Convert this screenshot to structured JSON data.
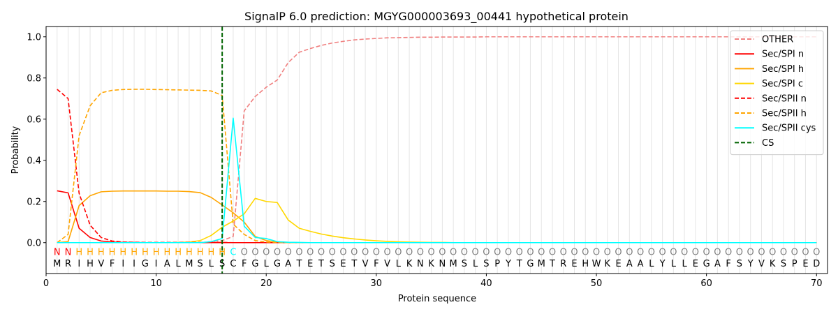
{
  "chart_data": {
    "type": "line",
    "title": "SignalP 6.0 prediction: MGYG000003693_00441 hypothetical protein",
    "xlabel": "Protein sequence",
    "ylabel": "Probability",
    "xlim": [
      0,
      71
    ],
    "ylim": [
      -0.15,
      1.05
    ],
    "x_ticks": [
      "0",
      "10",
      "20",
      "30",
      "40",
      "50",
      "60",
      "70"
    ],
    "y_ticks": [
      "0.0",
      "0.2",
      "0.4",
      "0.6",
      "0.8",
      "1.0"
    ],
    "grid": "vertical lines at each residue",
    "legend_position": "top-right",
    "sequence": [
      "M",
      "R",
      "I",
      "H",
      "V",
      "F",
      "I",
      "I",
      "G",
      "I",
      "A",
      "L",
      "M",
      "S",
      "L",
      "S",
      "C",
      "F",
      "G",
      "L",
      "G",
      "A",
      "T",
      "E",
      "T",
      "S",
      "E",
      "T",
      "V",
      "F",
      "V",
      "L",
      "K",
      "N",
      "K",
      "N",
      "M",
      "S",
      "L",
      "S",
      "P",
      "Y",
      "T",
      "G",
      "M",
      "T",
      "R",
      "E",
      "H",
      "W",
      "K",
      "E",
      "A",
      "A",
      "L",
      "Y",
      "L",
      "L",
      "E",
      "G",
      "A",
      "F",
      "S",
      "Y",
      "V",
      "K",
      "S",
      "P",
      "E",
      "D"
    ],
    "annotation": [
      "N",
      "N",
      "H",
      "H",
      "H",
      "H",
      "H",
      "H",
      "H",
      "H",
      "H",
      "H",
      "H",
      "H",
      "H",
      "H",
      "C",
      "O",
      "O",
      "O",
      "O",
      "O",
      "O",
      "O",
      "O",
      "O",
      "O",
      "O",
      "O",
      "O",
      "O",
      "O",
      "O",
      "O",
      "O",
      "O",
      "O",
      "O",
      "O",
      "O",
      "O",
      "O",
      "O",
      "O",
      "O",
      "O",
      "O",
      "O",
      "O",
      "O",
      "O",
      "O",
      "O",
      "O",
      "O",
      "O",
      "O",
      "O",
      "O",
      "O",
      "O",
      "O",
      "O",
      "O",
      "O",
      "O",
      "O",
      "O",
      "O",
      "O"
    ],
    "annotation_colors": {
      "N": "#ff0000",
      "H": "#ffa500",
      "C": "#00ffff",
      "O": "#808080"
    },
    "cleavage_site": 16,
    "series": [
      {
        "name": "OTHER",
        "color": "#f08080",
        "dash": true,
        "values": [
          0.0,
          0.0,
          0.0,
          0.0,
          0.0,
          0.0,
          0.0,
          0.0,
          0.0,
          0.0,
          0.0,
          0.0,
          0.0,
          0.0,
          0.005,
          0.01,
          0.03,
          0.64,
          0.71,
          0.755,
          0.79,
          0.875,
          0.925,
          0.943,
          0.958,
          0.97,
          0.978,
          0.985,
          0.989,
          0.992,
          0.995,
          0.996,
          0.997,
          0.998,
          0.998,
          0.999,
          0.999,
          0.999,
          0.999,
          1.0,
          1.0,
          1.0,
          1.0,
          1.0,
          1.0,
          1.0,
          1.0,
          1.0,
          1.0,
          1.0,
          1.0,
          1.0,
          1.0,
          1.0,
          1.0,
          1.0,
          1.0,
          1.0,
          1.0,
          1.0,
          1.0,
          1.0,
          1.0,
          1.0,
          1.0,
          1.0,
          1.0,
          1.0,
          1.0,
          1.0
        ]
      },
      {
        "name": "Sec/SPI n",
        "color": "#ff0000",
        "dash": false,
        "values": [
          0.252,
          0.242,
          0.07,
          0.025,
          0.008,
          0.003,
          0.001,
          0.001,
          0.0,
          0.0,
          0.0,
          0.0,
          0.0,
          0.0,
          0.0,
          0.0,
          0.0,
          0.0,
          0.0,
          0.0,
          0.0,
          0.0,
          0.0,
          0.0,
          0.0,
          0.0,
          0.0,
          0.0,
          0.0,
          0.0,
          0.0,
          0.0,
          0.0,
          0.0,
          0.0,
          0.0,
          0.0,
          0.0,
          0.0,
          0.0,
          0.0,
          0.0,
          0.0,
          0.0,
          0.0,
          0.0,
          0.0,
          0.0,
          0.0,
          0.0,
          0.0,
          0.0,
          0.0,
          0.0,
          0.0,
          0.0,
          0.0,
          0.0,
          0.0,
          0.0,
          0.0,
          0.0,
          0.0,
          0.0,
          0.0,
          0.0,
          0.0,
          0.0,
          0.0,
          0.0
        ]
      },
      {
        "name": "Sec/SPI h",
        "color": "#ffa500",
        "dash": false,
        "values": [
          0.0,
          0.005,
          0.18,
          0.228,
          0.247,
          0.25,
          0.251,
          0.251,
          0.251,
          0.251,
          0.25,
          0.25,
          0.248,
          0.243,
          0.22,
          0.183,
          0.145,
          0.1,
          0.03,
          0.01,
          0.003,
          0.0,
          0.0,
          0.0,
          0.0,
          0.0,
          0.0,
          0.0,
          0.0,
          0.0,
          0.0,
          0.0,
          0.0,
          0.0,
          0.0,
          0.0,
          0.0,
          0.0,
          0.0,
          0.0,
          0.0,
          0.0,
          0.0,
          0.0,
          0.0,
          0.0,
          0.0,
          0.0,
          0.0,
          0.0,
          0.0,
          0.0,
          0.0,
          0.0,
          0.0,
          0.0,
          0.0,
          0.0,
          0.0,
          0.0,
          0.0,
          0.0,
          0.0,
          0.0,
          0.0,
          0.0,
          0.0,
          0.0,
          0.0,
          0.0
        ]
      },
      {
        "name": "Sec/SPI c",
        "color": "#ffd700",
        "dash": false,
        "values": [
          0.0,
          0.0,
          0.0,
          0.0,
          0.0,
          0.0,
          0.0,
          0.0,
          0.0,
          0.0,
          0.0,
          0.001,
          0.003,
          0.01,
          0.035,
          0.075,
          0.105,
          0.14,
          0.215,
          0.2,
          0.195,
          0.11,
          0.07,
          0.055,
          0.042,
          0.032,
          0.024,
          0.018,
          0.013,
          0.009,
          0.006,
          0.004,
          0.003,
          0.002,
          0.001,
          0.001,
          0.0,
          0.0,
          0.0,
          0.0,
          0.0,
          0.0,
          0.0,
          0.0,
          0.0,
          0.0,
          0.0,
          0.0,
          0.0,
          0.0,
          0.0,
          0.0,
          0.0,
          0.0,
          0.0,
          0.0,
          0.0,
          0.0,
          0.0,
          0.0,
          0.0,
          0.0,
          0.0,
          0.0,
          0.0,
          0.0,
          0.0,
          0.0,
          0.0,
          0.0
        ]
      },
      {
        "name": "Sec/SPII n",
        "color": "#ff0000",
        "dash": true,
        "values": [
          0.745,
          0.7,
          0.24,
          0.085,
          0.025,
          0.008,
          0.003,
          0.002,
          0.001,
          0.001,
          0.001,
          0.001,
          0.001,
          0.001,
          0.001,
          0.001,
          0.0,
          0.0,
          0.0,
          0.0,
          0.0,
          0.0,
          0.0,
          0.0,
          0.0,
          0.0,
          0.0,
          0.0,
          0.0,
          0.0,
          0.0,
          0.0,
          0.0,
          0.0,
          0.0,
          0.0,
          0.0,
          0.0,
          0.0,
          0.0,
          0.0,
          0.0,
          0.0,
          0.0,
          0.0,
          0.0,
          0.0,
          0.0,
          0.0,
          0.0,
          0.0,
          0.0,
          0.0,
          0.0,
          0.0,
          0.0,
          0.0,
          0.0,
          0.0,
          0.0,
          0.0,
          0.0,
          0.0,
          0.0,
          0.0,
          0.0,
          0.0,
          0.0,
          0.0,
          0.0
        ]
      },
      {
        "name": "Sec/SPII h",
        "color": "#ffa500",
        "dash": true,
        "values": [
          0.0,
          0.04,
          0.52,
          0.665,
          0.728,
          0.74,
          0.744,
          0.745,
          0.745,
          0.744,
          0.743,
          0.742,
          0.741,
          0.74,
          0.737,
          0.715,
          0.09,
          0.04,
          0.01,
          0.003,
          0.001,
          0.0,
          0.0,
          0.0,
          0.0,
          0.0,
          0.0,
          0.0,
          0.0,
          0.0,
          0.0,
          0.0,
          0.0,
          0.0,
          0.0,
          0.0,
          0.0,
          0.0,
          0.0,
          0.0,
          0.0,
          0.0,
          0.0,
          0.0,
          0.0,
          0.0,
          0.0,
          0.0,
          0.0,
          0.0,
          0.0,
          0.0,
          0.0,
          0.0,
          0.0,
          0.0,
          0.0,
          0.0,
          0.0,
          0.0,
          0.0,
          0.0,
          0.0,
          0.0,
          0.0,
          0.0,
          0.0,
          0.0,
          0.0,
          0.0
        ]
      },
      {
        "name": "Sec/SPII cys",
        "color": "#00ffff",
        "dash": false,
        "values": [
          0.0,
          0.0,
          0.0,
          0.0,
          0.0,
          0.0,
          0.0,
          0.0,
          0.0,
          0.0,
          0.0,
          0.0,
          0.0,
          0.0,
          0.005,
          0.02,
          0.605,
          0.08,
          0.025,
          0.02,
          0.005,
          0.002,
          0.001,
          0.0,
          0.0,
          0.0,
          0.0,
          0.0,
          0.0,
          0.0,
          0.0,
          0.0,
          0.0,
          0.0,
          0.0,
          0.0,
          0.0,
          0.0,
          0.0,
          0.0,
          0.0,
          0.0,
          0.0,
          0.0,
          0.0,
          0.0,
          0.0,
          0.0,
          0.0,
          0.0,
          0.0,
          0.0,
          0.0,
          0.0,
          0.0,
          0.0,
          0.0,
          0.0,
          0.0,
          0.0,
          0.0,
          0.0,
          0.0,
          0.0,
          0.0,
          0.0,
          0.0,
          0.0,
          0.0,
          0.0
        ]
      }
    ],
    "cs_legend": {
      "name": "CS",
      "color": "#006400"
    }
  }
}
